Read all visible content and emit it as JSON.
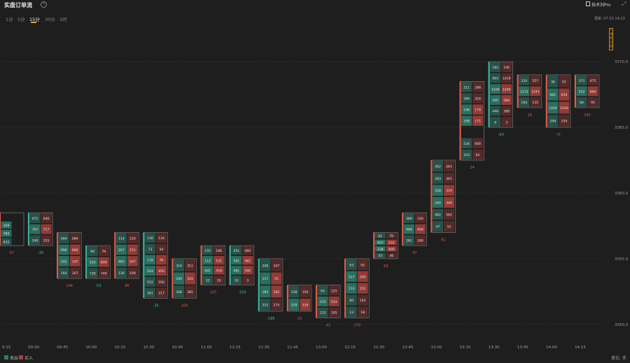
{
  "title": "实盘订单流",
  "help_icon": "?",
  "brand": "技术刘Pro",
  "expand_icon": "⤢",
  "tabs": [
    {
      "label": "1分",
      "active": false
    },
    {
      "label": "5分",
      "active": false
    },
    {
      "label": "15分",
      "active": true
    },
    {
      "label": "30分",
      "active": false
    },
    {
      "label": "1时",
      "active": false
    }
  ],
  "updated": "更新: 07-21 14:23",
  "side_tag": "Σ 堆积订单",
  "legend": {
    "sell": "卖出",
    "buy": "买入"
  },
  "colors": {
    "sell": "#2e7d6b",
    "buy": "#a83f3c",
    "background": "#1e1e1e",
    "bar_up": "#e35a4a",
    "bar_down": "#3ab5a0",
    "pos": "#e35a4a",
    "neg": "#3cbfa6"
  },
  "unit": "单位: 手",
  "chart_data": {
    "type": "footprint",
    "y_ticks": [
      "3370.0",
      "3365.0",
      "3360.0",
      "3355.0",
      "3350.0"
    ],
    "x_ticks": [
      "9:15",
      "09:30",
      "09:45",
      "10:00",
      "10:15",
      "10:30",
      "10:45",
      "11:00",
      "11:15",
      "11:30",
      "11:45",
      "13:00",
      "12:15",
      "12:30",
      "13:45",
      "13:00",
      "13:15",
      "13:30",
      "13:45",
      "14:00",
      "14:15"
    ],
    "bars": [
      {
        "x": 0,
        "top": 3358.5,
        "bottom": 3356.0,
        "delta": "67",
        "rows": [
          [
            "",
            ""
          ],
          [
            "309",
            ""
          ],
          [
            "789",
            ""
          ],
          [
            "632",
            ""
          ]
        ]
      },
      {
        "x": 1,
        "top": 3358.5,
        "bottom": 3356.0,
        "delta": "-30",
        "rows": [
          [
            "672",
            "646"
          ],
          [
            "767",
            "717"
          ],
          [
            "249",
            "255"
          ]
        ]
      },
      {
        "x": 2,
        "top": 3357.0,
        "bottom": 3353.5,
        "delta": "104",
        "rows": [
          [
            "584",
            "584"
          ],
          [
            "996",
            "666"
          ],
          [
            "202",
            "107"
          ],
          [
            "164",
            "167"
          ]
        ]
      },
      {
        "x": 3,
        "top": 3356.0,
        "bottom": 3353.5,
        "delta": "-53",
        "rows": [
          [
            "90",
            "79"
          ],
          [
            "553",
            "809"
          ],
          [
            "730",
            "740"
          ]
        ]
      },
      {
        "x": 4,
        "top": 3357.0,
        "bottom": 3353.5,
        "delta": "86",
        "rows": [
          [
            "114",
            "120"
          ],
          [
            "207",
            "251"
          ],
          [
            "483",
            "507"
          ],
          [
            "116",
            "108"
          ]
        ]
      },
      {
        "x": 5,
        "top": 3357.0,
        "bottom": 3352.0,
        "delta": "-39",
        "rows": [
          [
            "130",
            "134"
          ],
          [
            "73",
            "54"
          ],
          [
            "139",
            "76"
          ],
          [
            "524",
            "450"
          ],
          [
            "552",
            "556"
          ],
          [
            "261",
            "217"
          ]
        ]
      },
      {
        "x": 6,
        "top": 3355.0,
        "bottom": 3352.0,
        "delta": "104",
        "rows": [
          [
            "314",
            "311"
          ],
          [
            "339",
            "324"
          ],
          [
            "348",
            "381"
          ]
        ]
      },
      {
        "x": 7,
        "top": 3356.0,
        "bottom": 3353.0,
        "delta": "107",
        "rows": [
          [
            "155",
            "186"
          ],
          [
            "112",
            "151"
          ],
          [
            "401",
            "418"
          ],
          [
            "32",
            "29"
          ]
        ]
      },
      {
        "x": 8,
        "top": 3356.0,
        "bottom": 3353.0,
        "delta": "-109",
        "rows": [
          [
            "451",
            "460"
          ],
          [
            "501",
            "461"
          ],
          [
            "481",
            "500"
          ],
          [
            "10",
            "3"
          ]
        ]
      },
      {
        "x": 9,
        "top": 3355.0,
        "bottom": 3351.0,
        "delta": "-186",
        "rows": [
          [
            "208",
            "167"
          ],
          [
            "117",
            "55"
          ],
          [
            "182",
            "182"
          ],
          [
            "332",
            "275"
          ]
        ]
      },
      {
        "x": 10,
        "top": 3353.0,
        "bottom": 3351.0,
        "delta": "23",
        "rows": [
          [
            "138",
            "150"
          ],
          [
            "328",
            "339"
          ]
        ]
      },
      {
        "x": 11,
        "top": 3353.0,
        "bottom": 3350.5,
        "delta": "41",
        "rows": [
          [
            "65",
            "125"
          ],
          [
            "115",
            "214"
          ],
          [
            "115",
            "105"
          ]
        ]
      },
      {
        "x": 12,
        "top": 3355.0,
        "bottom": 3350.5,
        "delta": "170",
        "rows": [
          [
            "63",
            "92"
          ],
          [
            "317",
            "300"
          ],
          [
            "113",
            "152"
          ],
          [
            "80",
            "102"
          ],
          [
            "13",
            "18"
          ]
        ]
      },
      {
        "x": 13,
        "top": 3357.0,
        "bottom": 3355.0,
        "delta": "63",
        "rows": [
          [
            "61",
            "70"
          ],
          [
            "467",
            "333"
          ],
          [
            "338",
            "405"
          ],
          [
            "43",
            "46"
          ]
        ]
      },
      {
        "x": 14,
        "top": 3358.5,
        "bottom": 3356.0,
        "delta": "47",
        "rows": [
          [
            "389",
            "330"
          ],
          [
            "468",
            "458"
          ],
          [
            "282",
            "260"
          ]
        ]
      },
      {
        "x": 15,
        "top": 3362.5,
        "bottom": 3357.0,
        "delta": "61",
        "rows": [
          [
            "262",
            "261"
          ],
          [
            "283",
            "361"
          ],
          [
            "338",
            "319"
          ],
          [
            "340",
            "340"
          ],
          [
            "482",
            "562"
          ],
          [
            "47",
            "52"
          ]
        ]
      },
      {
        "x": 16,
        "top": 3368.5,
        "bottom": 3362.5,
        "delta": "24",
        "rows": [
          [
            "211",
            "266"
          ],
          [
            "306",
            "316"
          ],
          [
            "196",
            "179"
          ],
          [
            "168",
            "171"
          ],
          [
            "",
            ""
          ],
          [
            "534",
            "600"
          ],
          [
            "163",
            "81"
          ]
        ]
      },
      {
        "x": 17,
        "top": 3370.0,
        "bottom": 3365.0,
        "delta": "-63",
        "rows": [
          [
            "183",
            "195"
          ],
          [
            "903",
            "1019"
          ],
          [
            "1200",
            "1294"
          ],
          [
            "595",
            "584"
          ],
          [
            "444",
            "380"
          ],
          [
            "6",
            "3"
          ]
        ]
      },
      {
        "x": 18,
        "top": 3369.0,
        "bottom": 3366.5,
        "delta": "19",
        "rows": [
          [
            "224",
            "257"
          ],
          [
            "1215",
            "1243"
          ],
          [
            "164",
            "135"
          ]
        ]
      },
      {
        "x": 19,
        "top": 3369.0,
        "bottom": 3365.0,
        "delta": "71",
        "rows": [
          [
            "36",
            "52"
          ],
          [
            "681",
            "634"
          ],
          [
            "1026",
            "1039"
          ],
          [
            "199",
            "159"
          ]
        ]
      },
      {
        "x": 20,
        "top": 3369.0,
        "bottom": 3366.5,
        "delta": "182",
        "rows": [
          [
            "371",
            "475"
          ],
          [
            "532",
            "660"
          ],
          [
            "84",
            "95"
          ]
        ]
      }
    ]
  }
}
